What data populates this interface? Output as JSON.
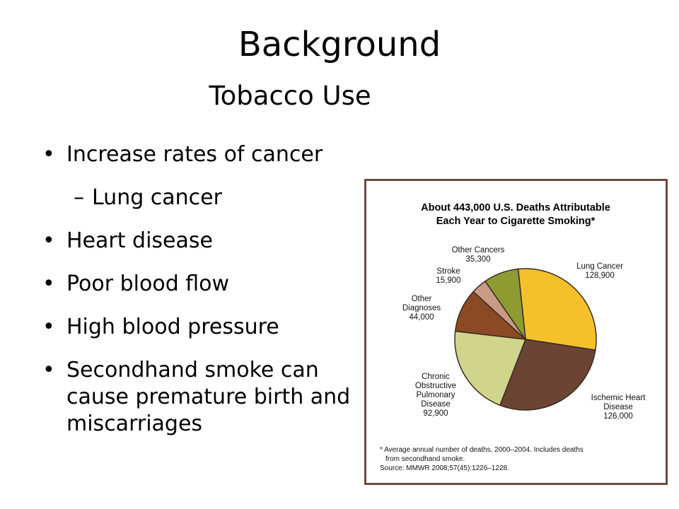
{
  "slide": {
    "title": "Background",
    "subtitle": "Tobacco Use",
    "bullets": [
      {
        "text": "Increase rates of cancer",
        "level": 1
      },
      {
        "text": "Lung cancer",
        "level": 2
      },
      {
        "text": "Heart disease",
        "level": 1
      },
      {
        "text": "Poor blood flow",
        "level": 1
      },
      {
        "text": "High blood pressure",
        "level": 1
      },
      {
        "text": "Secondhand smoke can cause premature birth and miscarriages",
        "level": 1
      }
    ]
  },
  "chart_data": {
    "type": "pie",
    "title": "About 443,000 U.S. Deaths Attributable Each Year to Cigarette Smoking*",
    "categories": [
      "Lung Cancer",
      "Ischemic Heart Disease",
      "Chronic Obstructive Pulmonary Disease",
      "Other Diagnoses",
      "Stroke",
      "Other Cancers"
    ],
    "values": [
      128900,
      126000,
      92900,
      44000,
      15900,
      35300
    ],
    "labels": [
      [
        "Lung Cancer",
        "128,900"
      ],
      [
        "Ischemic Heart",
        "Disease",
        "126,000"
      ],
      [
        "Chronic",
        "Obstructive",
        "Pulmonary",
        "Disease",
        "92,900"
      ],
      [
        "Other",
        "Diagnoses",
        "44,000"
      ],
      [
        "Stroke",
        "15,900"
      ],
      [
        "Other Cancers",
        "35,300"
      ]
    ],
    "colors": [
      "#f5c12b",
      "#6b4434",
      "#cfd58c",
      "#8b4a24",
      "#c99a84",
      "#8e9b32"
    ],
    "footnote": [
      "* Average annual number of deaths, 2000–2004. Includes deaths",
      "from secondhand smoke.",
      "Source: MMWR 2008;57(45):1226–1228."
    ]
  }
}
